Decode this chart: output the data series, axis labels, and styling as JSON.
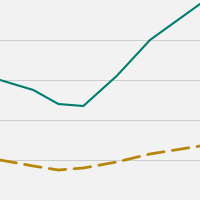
{
  "solid_line": {
    "x": [
      0,
      4,
      7,
      10,
      14,
      18,
      24
    ],
    "y": [
      60,
      55,
      48,
      47,
      62,
      80,
      98
    ],
    "color": "#007B6E",
    "linewidth": 1.5
  },
  "dashed_line": {
    "x": [
      0,
      4,
      7,
      10,
      14,
      18,
      24
    ],
    "y": [
      20,
      17,
      15,
      16,
      19,
      23,
      27
    ],
    "color": "#B8860B",
    "linewidth": 2.0,
    "dash_on": 6,
    "dash_off": 3
  },
  "background_color": "#F2F2F2",
  "grid_color": "#C8C8C8",
  "ylim": [
    0,
    100
  ],
  "xlim": [
    0,
    24
  ],
  "yticks": [
    20,
    40,
    60,
    80
  ],
  "figsize": [
    2.0,
    2.0
  ],
  "dpi": 100
}
